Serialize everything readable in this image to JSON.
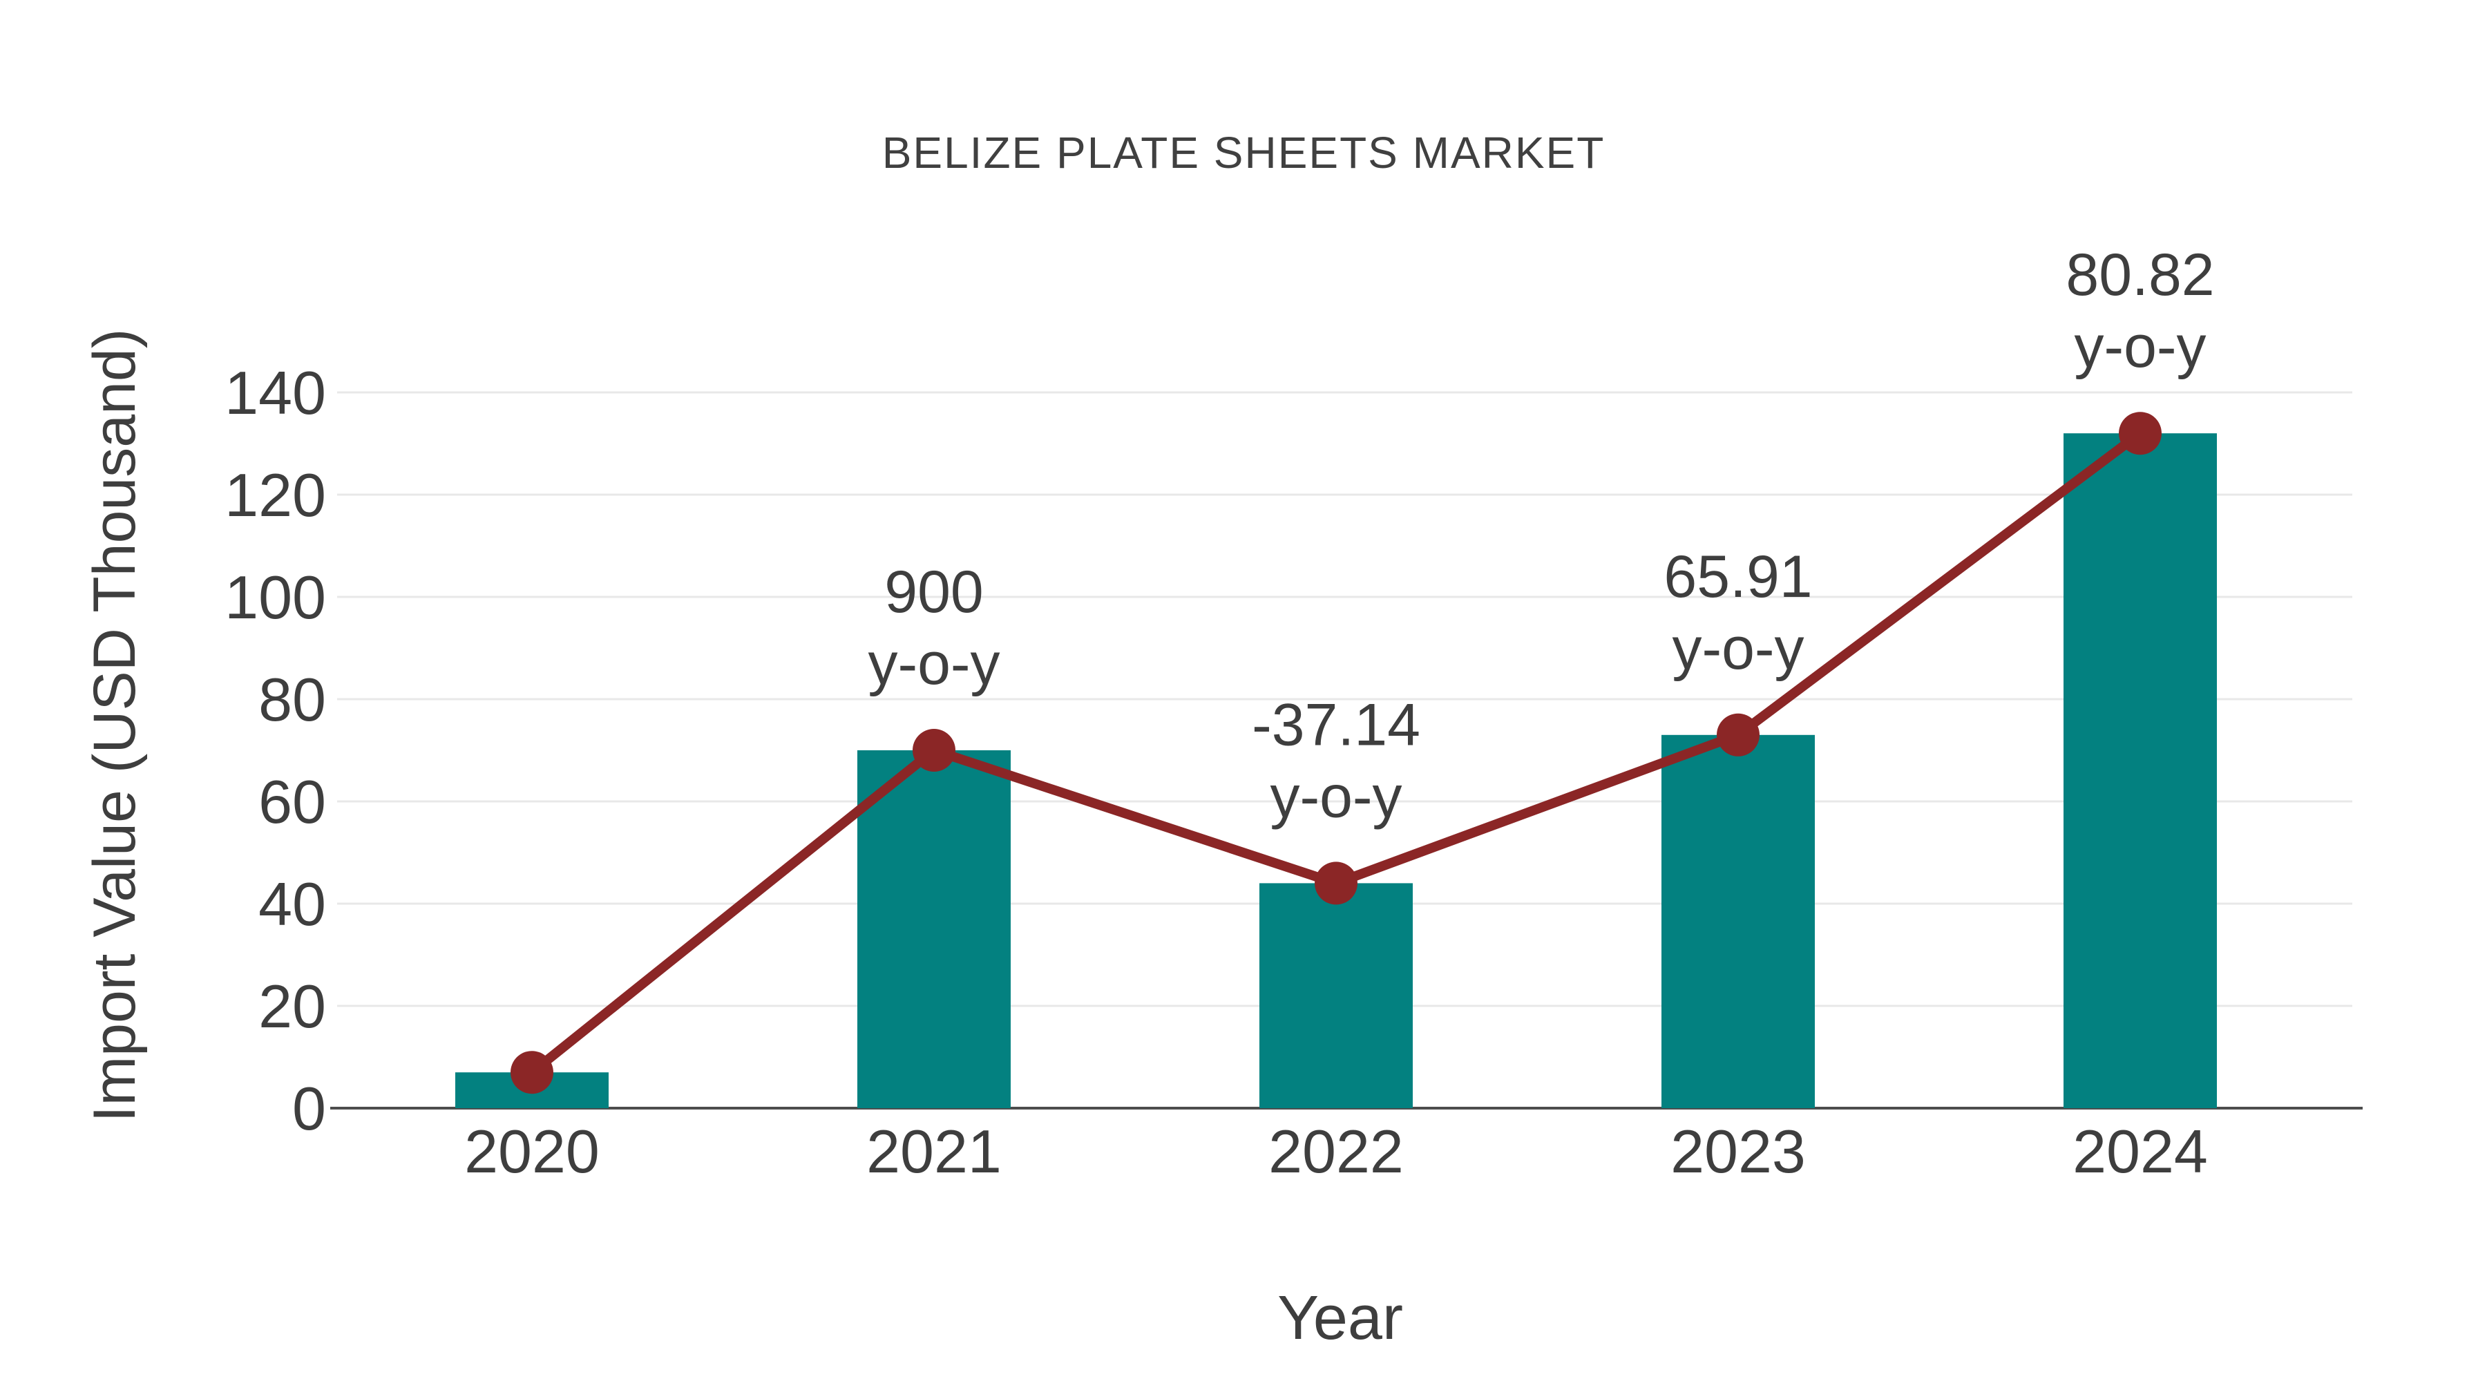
{
  "page": {
    "background_color": "#ffffff"
  },
  "chart_data": {
    "type": "bar",
    "title": "BELIZE PLATE SHEETS MARKET",
    "xlabel": "Year",
    "ylabel": "Import Value (USD Thousand)",
    "categories": [
      "2020",
      "2021",
      "2022",
      "2023",
      "2024"
    ],
    "series": [
      {
        "name": "Import Value",
        "type": "bar",
        "values": [
          7,
          70,
          44,
          73,
          132
        ],
        "color": "#038180"
      },
      {
        "name": "Import Value trend",
        "type": "line",
        "values": [
          7,
          70,
          44,
          73,
          132
        ],
        "color": "#8B2626"
      }
    ],
    "annotations": [
      {
        "category_index": 1,
        "lines": [
          "900",
          "y-o-y"
        ]
      },
      {
        "category_index": 2,
        "lines": [
          "-37.14",
          "y-o-y"
        ]
      },
      {
        "category_index": 3,
        "lines": [
          "65.91",
          "y-o-y"
        ]
      },
      {
        "category_index": 4,
        "lines": [
          "80.82",
          "y-o-y"
        ]
      }
    ],
    "ylim": [
      0,
      140
    ],
    "yticks": [
      0,
      20,
      40,
      60,
      80,
      100,
      120,
      140
    ],
    "grid": true,
    "legend": "none",
    "colors": {
      "bar": "#038180",
      "line": "#8B2626",
      "marker": "#8B2626",
      "gridline": "#e8e8e8",
      "axis_line": "#4d4d4d",
      "text": "#3e3e3e",
      "title": "#404040",
      "background": "#ffffff"
    }
  }
}
